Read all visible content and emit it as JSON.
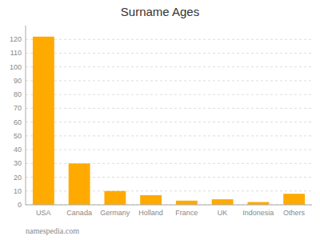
{
  "chart_data": {
    "type": "bar",
    "title": "Surname Ages",
    "categories": [
      "USA",
      "Canada",
      "Germany",
      "Holland",
      "France",
      "UK",
      "Indonesia",
      "Others"
    ],
    "values": [
      122,
      30,
      10,
      7,
      3,
      4,
      2,
      8
    ],
    "color": "#FFAA00",
    "ylim": [
      0,
      130
    ],
    "yticks": [
      0,
      10,
      20,
      30,
      40,
      50,
      60,
      70,
      80,
      90,
      100,
      110,
      120
    ],
    "grid": true,
    "annotations": [
      "namespedia.com"
    ]
  }
}
